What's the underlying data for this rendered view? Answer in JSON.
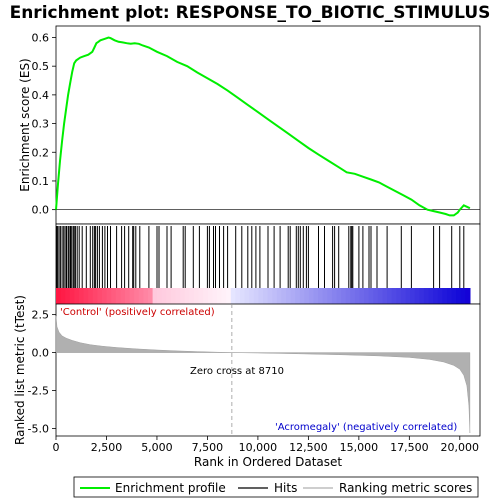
{
  "chart_data": {
    "type": "line",
    "title": "Enrichment plot: RESPONSE_TO_BIOTIC_STIMULUS",
    "es_panel": {
      "ylabel": "Enrichment score (ES)",
      "ylim": [
        -0.05,
        0.64
      ],
      "yticks": [
        0.0,
        0.1,
        0.2,
        0.3,
        0.4,
        0.5,
        0.6
      ],
      "ytick_labels": [
        "0.0",
        "0.1",
        "0.2",
        "0.3",
        "0.4",
        "0.5",
        "0.6"
      ],
      "series": [
        {
          "name": "Enrichment profile",
          "color": "#00ee00",
          "x": [
            0,
            100,
            200,
            300,
            400,
            500,
            600,
            700,
            800,
            900,
            1000,
            1200,
            1400,
            1600,
            1800,
            1900,
            2000,
            2100,
            2200,
            2400,
            2600,
            2700,
            2900,
            3100,
            3300,
            3500,
            3700,
            3900,
            4100,
            4300,
            4600,
            5000,
            5500,
            6000,
            6500,
            7000,
            7500,
            8000,
            8500,
            9000,
            9500,
            10000,
            10500,
            11000,
            11500,
            12000,
            12500,
            13000,
            13500,
            14000,
            14400,
            14800,
            15200,
            15600,
            16000,
            16400,
            16800,
            17200,
            17600,
            18000,
            18400,
            18700,
            19000,
            19300,
            19500,
            19700,
            19900,
            20000,
            20200,
            20500
          ],
          "y": [
            0.0,
            0.09,
            0.17,
            0.24,
            0.3,
            0.35,
            0.4,
            0.44,
            0.48,
            0.51,
            0.52,
            0.53,
            0.535,
            0.54,
            0.55,
            0.565,
            0.58,
            0.585,
            0.59,
            0.595,
            0.6,
            0.598,
            0.59,
            0.585,
            0.583,
            0.58,
            0.578,
            0.58,
            0.578,
            0.572,
            0.565,
            0.55,
            0.535,
            0.515,
            0.5,
            0.478,
            0.458,
            0.438,
            0.415,
            0.39,
            0.365,
            0.34,
            0.315,
            0.29,
            0.265,
            0.24,
            0.215,
            0.192,
            0.17,
            0.148,
            0.13,
            0.125,
            0.115,
            0.105,
            0.095,
            0.08,
            0.065,
            0.05,
            0.035,
            0.015,
            0.0,
            -0.005,
            -0.01,
            -0.015,
            -0.02,
            -0.02,
            -0.01,
            0.0,
            0.015,
            0.005
          ]
        }
      ]
    },
    "hits_panel": {
      "legend_label": "Hits",
      "hit_positions": [
        30,
        80,
        150,
        220,
        300,
        380,
        450,
        520,
        600,
        650,
        720,
        780,
        850,
        900,
        960,
        1050,
        1150,
        1300,
        1500,
        1700,
        1820,
        1900,
        1960,
        2050,
        2150,
        2300,
        2420,
        2550,
        2700,
        3000,
        3250,
        3400,
        3600,
        3800,
        3850,
        3950,
        4150,
        4600,
        5000,
        5100,
        5500,
        5700,
        6300,
        6400,
        6800,
        7100,
        7500,
        7600,
        7800,
        7900,
        8100,
        8300,
        8500,
        8900,
        9200,
        9500,
        9700,
        9900,
        10100,
        10500,
        10800,
        11100,
        11500,
        11600,
        11900,
        12000,
        12100,
        12250,
        12400,
        12500,
        13000,
        13300,
        13700,
        13800,
        14000,
        14500,
        14600,
        14650,
        14700,
        15000,
        15200,
        15500,
        15600,
        15900,
        16400,
        17100,
        17600,
        18700,
        19000,
        19600,
        20000,
        20200
      ]
    },
    "metric_panel": {
      "ylabel": "Ranked list metric (tTest)",
      "xlabel": "Rank in Ordered Dataset",
      "legend_label": "Ranking metric scores",
      "ylim": [
        -5.5,
        3.2
      ],
      "yticks": [
        2.5,
        0.0,
        -2.5,
        -5.0
      ],
      "ytick_labels": [
        "2.5",
        "0.0",
        "-2.5",
        "-5.0"
      ],
      "xlim": [
        0,
        21000
      ],
      "xticks": [
        0,
        2500,
        5000,
        7500,
        10000,
        12500,
        15000,
        17500,
        20000
      ],
      "xtick_labels": [
        "0",
        "2,500",
        "5,000",
        "7,500",
        "10,000",
        "12,500",
        "15,000",
        "17,500",
        "20,000"
      ],
      "x": [
        0,
        50,
        150,
        300,
        500,
        800,
        1200,
        1700,
        2300,
        3000,
        4000,
        5000,
        6000,
        7000,
        8000,
        8710,
        10000,
        12000,
        14000,
        16000,
        17500,
        18500,
        19200,
        19700,
        20000,
        20200,
        20350,
        20450,
        20500
      ],
      "y": [
        2.4,
        1.7,
        1.35,
        1.1,
        0.95,
        0.8,
        0.65,
        0.52,
        0.42,
        0.33,
        0.24,
        0.17,
        0.11,
        0.06,
        0.02,
        0.0,
        -0.03,
        -0.08,
        -0.14,
        -0.22,
        -0.32,
        -0.45,
        -0.62,
        -0.85,
        -1.1,
        -1.5,
        -2.2,
        -3.5,
        -5.3
      ],
      "zero_cross_label": "Zero cross at 8710",
      "zero_cross_rank": 8710,
      "positive_label": "'Control' (positively correlated)",
      "negative_label": "'Acromegaly' (negatively correlated)"
    },
    "legend": [
      "Enrichment profile",
      "Hits",
      "Ranking metric scores"
    ]
  }
}
